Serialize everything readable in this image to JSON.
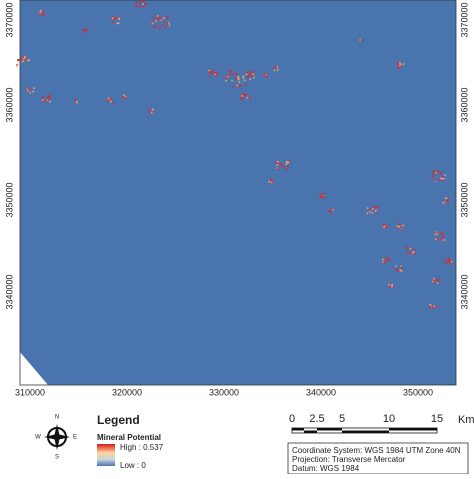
{
  "map": {
    "y_axis_labels": [
      "3370000",
      "3360000",
      "3350000",
      "3340000"
    ],
    "x_axis_labels": [
      "310000",
      "320000",
      "330000",
      "340000",
      "350000"
    ],
    "legend": {
      "title": "Legend",
      "subtitle": "Mineral Potential",
      "high": "High : 0.537",
      "low": "Low : 0"
    },
    "compass": {
      "n": "N",
      "s": "S",
      "e": "E",
      "w": "W"
    },
    "scale_bar": {
      "labels": [
        "0",
        "2.5",
        "5",
        "10",
        "15"
      ],
      "unit": "Km"
    },
    "info": [
      "Coordinate System: WGS 1984 UTM Zone 40N",
      "Projection: Transverse Mercator",
      "Datum: WGS 1984"
    ]
  }
}
